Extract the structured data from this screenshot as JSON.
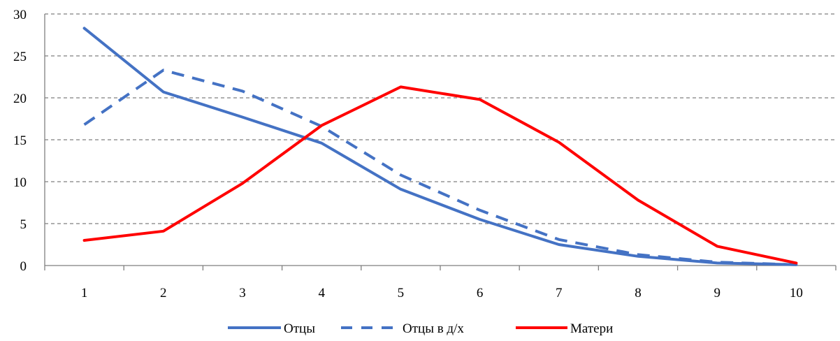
{
  "chart_data": {
    "type": "line",
    "title": "",
    "xlabel": "",
    "ylabel": "",
    "x": [
      1,
      2,
      3,
      4,
      5,
      6,
      7,
      8,
      9,
      10
    ],
    "x_tick_labels": [
      "1",
      "2",
      "3",
      "4",
      "5",
      "6",
      "7",
      "8",
      "9",
      "10"
    ],
    "ylim": [
      0,
      30
    ],
    "y_ticks": [
      0,
      5,
      10,
      15,
      20,
      25,
      30
    ],
    "y_tick_labels": [
      "0",
      "5",
      "10",
      "15",
      "20",
      "25",
      "30"
    ],
    "grid": "horizontal dashed",
    "legend_position": "bottom",
    "series": [
      {
        "name": "Отцы",
        "color": "#4472C4",
        "style": "solid",
        "values": [
          28.3,
          20.7,
          17.7,
          14.6,
          9.1,
          5.5,
          2.5,
          1.1,
          0.3,
          0.1
        ]
      },
      {
        "name": "Отцы в д/х",
        "color": "#4472C4",
        "style": "dashed",
        "values": [
          16.8,
          23.3,
          20.8,
          16.6,
          10.8,
          6.6,
          3.1,
          1.3,
          0.4,
          0.1
        ]
      },
      {
        "name": "Матери",
        "color": "#FF0000",
        "style": "solid",
        "values": [
          3.0,
          4.1,
          9.8,
          16.7,
          21.3,
          19.8,
          14.7,
          7.8,
          2.3,
          0.3
        ]
      }
    ]
  }
}
